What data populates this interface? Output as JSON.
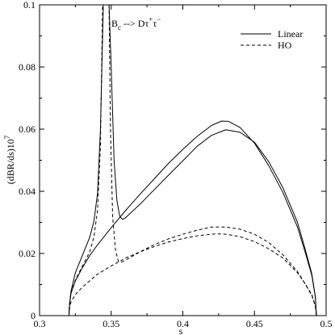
{
  "chart_data": {
    "type": "line",
    "annotation": {
      "parts": [
        "B",
        "c",
        " --> D",
        "τ",
        "+",
        "τ",
        "−"
      ]
    },
    "xlabel": "s",
    "ylabel": "(dBR/ds)10",
    "ylabel_exp": "7",
    "xlim": [
      0.3,
      0.5
    ],
    "ylim": [
      0,
      0.1
    ],
    "xticks": [
      0.3,
      0.35,
      0.4,
      0.45,
      0.5
    ],
    "xtick_labels": [
      "0.3",
      "0.35",
      "0.4",
      "0.45",
      "0.5"
    ],
    "yticks": [
      0,
      0.02,
      0.04,
      0.06,
      0.08,
      0.1
    ],
    "ytick_labels": [
      "0",
      "0.02",
      "0.04",
      "0.06",
      "0.08",
      "0.1"
    ],
    "grid": false,
    "legend": {
      "placement": "top-right",
      "entries": [
        {
          "label": "Linear",
          "dash": "solid"
        },
        {
          "label": "HO",
          "dash": "dashed"
        }
      ]
    },
    "series": [
      {
        "name": "Linear",
        "dash": "solid",
        "x": [
          0.3205,
          0.321,
          0.322,
          0.325,
          0.33,
          0.335,
          0.338,
          0.3405,
          0.3425,
          0.3445
        ],
        "y": [
          0.0,
          0.004,
          0.008,
          0.0138,
          0.0195,
          0.0252,
          0.0305,
          0.0395,
          0.06,
          0.1
        ]
      },
      {
        "name": "Linear",
        "dash": "solid",
        "x": [
          0.3485,
          0.35,
          0.352,
          0.354,
          0.356,
          0.358,
          0.36,
          0.37,
          0.38,
          0.39,
          0.4,
          0.41,
          0.42,
          0.43,
          0.44,
          0.45,
          0.46,
          0.47,
          0.48,
          0.485,
          0.49,
          0.4925,
          0.4932
        ],
        "y": [
          0.1,
          0.08,
          0.05,
          0.037,
          0.0318,
          0.031,
          0.0315,
          0.0358,
          0.0405,
          0.0452,
          0.0498,
          0.0545,
          0.058,
          0.0598,
          0.059,
          0.0558,
          0.0495,
          0.041,
          0.03,
          0.022,
          0.0135,
          0.006,
          0.0
        ]
      },
      {
        "name": "Linear",
        "dash": "solid",
        "x": [
          0.3205,
          0.321,
          0.322,
          0.325,
          0.33,
          0.335,
          0.34,
          0.35,
          0.36,
          0.37,
          0.38,
          0.39,
          0.4,
          0.41,
          0.42,
          0.427,
          0.432,
          0.44,
          0.45,
          0.46,
          0.47,
          0.48,
          0.485,
          0.49,
          0.4925,
          0.4932
        ],
        "y": [
          0.0,
          0.004,
          0.0072,
          0.0112,
          0.0155,
          0.0193,
          0.0225,
          0.0283,
          0.0338,
          0.039,
          0.044,
          0.049,
          0.0535,
          0.0577,
          0.0612,
          0.0626,
          0.0625,
          0.0605,
          0.0555,
          0.0482,
          0.0395,
          0.0285,
          0.021,
          0.013,
          0.006,
          0.0
        ]
      },
      {
        "name": "HO",
        "dash": "dashed",
        "x": [
          0.3205,
          0.321,
          0.322,
          0.325,
          0.33,
          0.335,
          0.338,
          0.3405,
          0.3425,
          0.344
        ],
        "y": [
          0.0,
          0.004,
          0.0075,
          0.0115,
          0.016,
          0.0205,
          0.0255,
          0.034,
          0.055,
          0.1
        ]
      },
      {
        "name": "HO",
        "dash": "dashed",
        "x": [
          0.3485,
          0.3495,
          0.351,
          0.353,
          0.355,
          0.357,
          0.36,
          0.37,
          0.38,
          0.39,
          0.4,
          0.41,
          0.42,
          0.43,
          0.44,
          0.45,
          0.46,
          0.47,
          0.48,
          0.485,
          0.49,
          0.4925,
          0.4932
        ],
        "y": [
          0.1,
          0.06,
          0.032,
          0.021,
          0.0175,
          0.0172,
          0.0178,
          0.0205,
          0.0228,
          0.0247,
          0.0262,
          0.0275,
          0.0285,
          0.0285,
          0.0278,
          0.0262,
          0.0235,
          0.0195,
          0.0142,
          0.0105,
          0.0068,
          0.0032,
          0.0
        ]
      },
      {
        "name": "HO",
        "dash": "dashed",
        "x": [
          0.3205,
          0.321,
          0.322,
          0.325,
          0.33,
          0.335,
          0.34,
          0.35,
          0.36,
          0.37,
          0.38,
          0.39,
          0.4,
          0.41,
          0.42,
          0.425,
          0.43,
          0.44,
          0.45,
          0.46,
          0.47,
          0.48,
          0.485,
          0.49,
          0.4925,
          0.4932
        ],
        "y": [
          0.0,
          0.0025,
          0.0045,
          0.0068,
          0.0092,
          0.0112,
          0.0132,
          0.016,
          0.0185,
          0.0205,
          0.0222,
          0.0237,
          0.0248,
          0.0257,
          0.0262,
          0.0263,
          0.0262,
          0.0254,
          0.0238,
          0.0215,
          0.0185,
          0.0138,
          0.0105,
          0.0065,
          0.003,
          0.0
        ]
      }
    ]
  }
}
